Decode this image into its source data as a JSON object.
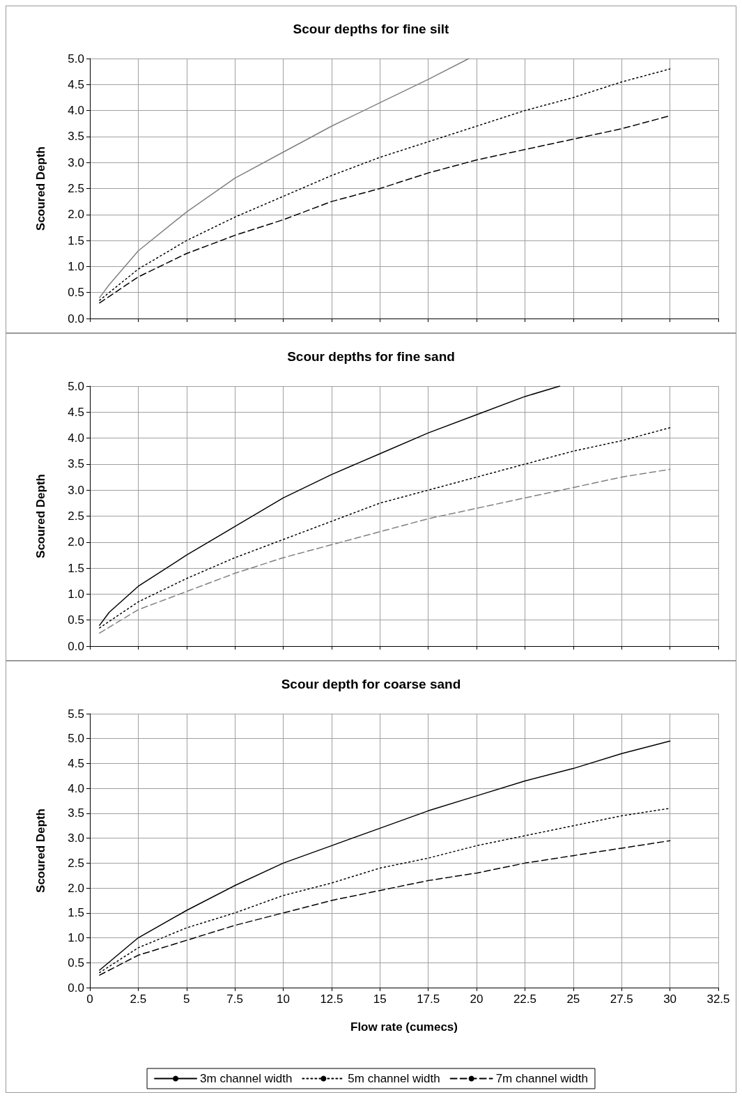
{
  "chart_data": [
    {
      "type": "line",
      "title": "Scour depths for fine silt",
      "ylabel": "Scoured Depth",
      "xlim": [
        0,
        32.5
      ],
      "xticks": [
        0,
        2.5,
        5,
        7.5,
        10,
        12.5,
        15,
        17.5,
        20,
        22.5,
        25,
        27.5,
        30,
        32.5
      ],
      "ylim": [
        0,
        5
      ],
      "yticks": [
        {
          "value": 0,
          "label": "0.0"
        },
        {
          "value": 0.5,
          "label": "0.5"
        },
        {
          "value": 1,
          "label": "1.0"
        },
        {
          "value": 1.5,
          "label": "1.5"
        },
        {
          "value": 2,
          "label": "2.0"
        },
        {
          "value": 2.5,
          "label": "2.5"
        },
        {
          "value": 3,
          "label": "3.0"
        },
        {
          "value": 3.5,
          "label": "3.5"
        },
        {
          "value": 4,
          "label": "4.0"
        },
        {
          "value": 4.5,
          "label": "4.5"
        },
        {
          "value": 5,
          "label": "5.0"
        }
      ],
      "grid": true,
      "tick_labels": "y",
      "marker": "none",
      "series": [
        {
          "color": "#808080",
          "line_style": "solid",
          "x": [
            0.5,
            1,
            2.5,
            5,
            7.5,
            10,
            12.5,
            15,
            17.5,
            19.6
          ],
          "values": [
            0.4,
            0.65,
            1.3,
            2.05,
            2.7,
            3.2,
            3.7,
            4.15,
            4.6,
            5.0
          ]
        },
        {
          "color": "#000000",
          "line_style": "dotted",
          "x": [
            0.5,
            2.5,
            5,
            7.5,
            10,
            12.5,
            15,
            17.5,
            20,
            22.5,
            25,
            27.5,
            30
          ],
          "values": [
            0.35,
            0.95,
            1.5,
            1.95,
            2.35,
            2.75,
            3.1,
            3.4,
            3.7,
            4.0,
            4.25,
            4.55,
            4.8
          ]
        },
        {
          "color": "#000000",
          "line_style": "dashed",
          "x": [
            0.5,
            2.5,
            5,
            7.5,
            10,
            12.5,
            15,
            17.5,
            20,
            22.5,
            25,
            27.5,
            30
          ],
          "values": [
            0.3,
            0.8,
            1.25,
            1.6,
            1.9,
            2.25,
            2.5,
            2.8,
            3.05,
            3.25,
            3.45,
            3.65,
            3.9
          ]
        }
      ]
    },
    {
      "type": "line",
      "title": "Scour depths for fine sand",
      "ylabel": "Scoured Depth",
      "xlim": [
        0,
        32.5
      ],
      "xticks": [
        0,
        2.5,
        5,
        7.5,
        10,
        12.5,
        15,
        17.5,
        20,
        22.5,
        25,
        27.5,
        30,
        32.5
      ],
      "ylim": [
        0,
        5
      ],
      "yticks": [
        {
          "value": 0,
          "label": "0.0"
        },
        {
          "value": 0.5,
          "label": "0.5"
        },
        {
          "value": 1,
          "label": "1.0"
        },
        {
          "value": 1.5,
          "label": "1.5"
        },
        {
          "value": 2,
          "label": "2.0"
        },
        {
          "value": 2.5,
          "label": "2.5"
        },
        {
          "value": 3,
          "label": "3.0"
        },
        {
          "value": 3.5,
          "label": "3.5"
        },
        {
          "value": 4,
          "label": "4.0"
        },
        {
          "value": 4.5,
          "label": "4.5"
        },
        {
          "value": 5,
          "label": "5.0"
        }
      ],
      "grid": true,
      "tick_labels": "y",
      "marker": "none",
      "series": [
        {
          "color": "#000000",
          "line_style": "solid",
          "x": [
            0.5,
            1,
            2.5,
            5,
            7.5,
            10,
            12.5,
            15,
            17.5,
            20,
            22.5,
            24.3
          ],
          "values": [
            0.4,
            0.65,
            1.15,
            1.75,
            2.3,
            2.85,
            3.3,
            3.7,
            4.1,
            4.45,
            4.8,
            5.0
          ]
        },
        {
          "color": "#000000",
          "line_style": "dotted",
          "x": [
            0.5,
            2.5,
            5,
            7.5,
            10,
            12.5,
            15,
            17.5,
            20,
            22.5,
            25,
            27.5,
            30
          ],
          "values": [
            0.35,
            0.85,
            1.3,
            1.7,
            2.05,
            2.4,
            2.75,
            3.0,
            3.25,
            3.5,
            3.75,
            3.95,
            4.2
          ]
        },
        {
          "color": "#808080",
          "line_style": "dashed",
          "x": [
            0.5,
            2.5,
            5,
            7.5,
            10,
            12.5,
            15,
            17.5,
            20,
            22.5,
            25,
            27.5,
            30
          ],
          "values": [
            0.25,
            0.7,
            1.05,
            1.4,
            1.7,
            1.95,
            2.2,
            2.45,
            2.65,
            2.85,
            3.05,
            3.25,
            3.4
          ]
        }
      ]
    },
    {
      "type": "line",
      "title": "Scour depth for coarse sand",
      "xlabel": "Flow rate (cumecs)",
      "ylabel": "Scoured Depth",
      "xlim": [
        0,
        32.5
      ],
      "xticks": [
        0,
        2.5,
        5,
        7.5,
        10,
        12.5,
        15,
        17.5,
        20,
        22.5,
        25,
        27.5,
        30,
        32.5
      ],
      "ylim": [
        0,
        5.5
      ],
      "yticks": [
        {
          "value": 0,
          "label": "0.0"
        },
        {
          "value": 0.5,
          "label": "0.5"
        },
        {
          "value": 1,
          "label": "1.0"
        },
        {
          "value": 1.5,
          "label": "1.5"
        },
        {
          "value": 2,
          "label": "2.0"
        },
        {
          "value": 2.5,
          "label": "2.5"
        },
        {
          "value": 3,
          "label": "3.0"
        },
        {
          "value": 3.5,
          "label": "3.5"
        },
        {
          "value": 4,
          "label": "4.0"
        },
        {
          "value": 4.5,
          "label": "4.5"
        },
        {
          "value": 5,
          "label": "5.0"
        },
        {
          "value": 5.5,
          "label": "5.5"
        }
      ],
      "grid": true,
      "legend": "bottom",
      "marker": "none",
      "series": [
        {
          "name": "3m channel width",
          "color": "#000000",
          "line_style": "solid",
          "x": [
            0.5,
            2.5,
            5,
            7.5,
            10,
            12.5,
            15,
            17.5,
            20,
            22.5,
            25,
            27.5,
            30
          ],
          "values": [
            0.35,
            1.0,
            1.55,
            2.05,
            2.5,
            2.85,
            3.2,
            3.55,
            3.85,
            4.15,
            4.4,
            4.7,
            4.95
          ]
        },
        {
          "name": "5m channel width",
          "color": "#000000",
          "line_style": "dotted",
          "x": [
            0.5,
            2.5,
            5,
            7.5,
            10,
            12.5,
            15,
            17.5,
            20,
            22.5,
            25,
            27.5,
            30
          ],
          "values": [
            0.3,
            0.8,
            1.2,
            1.5,
            1.85,
            2.1,
            2.4,
            2.6,
            2.85,
            3.05,
            3.25,
            3.45,
            3.6
          ]
        },
        {
          "name": "7m channel width",
          "color": "#000000",
          "line_style": "dashed",
          "x": [
            0.5,
            2.5,
            5,
            7.5,
            10,
            12.5,
            15,
            17.5,
            20,
            22.5,
            25,
            27.5,
            30
          ],
          "values": [
            0.25,
            0.65,
            0.95,
            1.25,
            1.5,
            1.75,
            1.95,
            2.15,
            2.3,
            2.5,
            2.65,
            2.8,
            2.95
          ]
        }
      ]
    }
  ]
}
